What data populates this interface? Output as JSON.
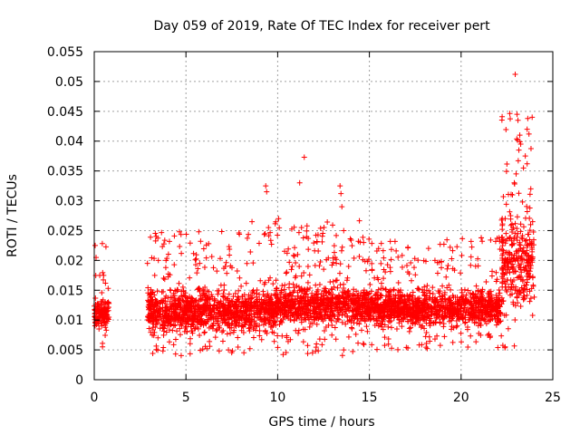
{
  "chart_data": {
    "type": "scatter",
    "title": "Day 059 of 2019, Rate Of TEC Index for receiver pert",
    "xlabel": "GPS time / hours",
    "ylabel": "ROTI / TECUs",
    "xlim": [
      0,
      25
    ],
    "ylim": [
      0,
      0.055
    ],
    "grid": true,
    "x_ticks": [
      0,
      5,
      10,
      15,
      20,
      25
    ],
    "x_tick_labels": [
      "0",
      "5",
      "10",
      "15",
      "20",
      "25"
    ],
    "y_ticks": [
      0,
      0.005,
      0.01,
      0.015,
      0.02,
      0.025,
      0.03,
      0.035,
      0.04,
      0.045,
      0.05,
      0.055
    ],
    "y_tick_labels": [
      "0",
      "0.005",
      "0.01",
      "0.015",
      "0.02",
      "0.025",
      "0.03",
      "0.035",
      "0.04",
      "0.045",
      "0.05",
      "0.055"
    ],
    "marker": "+",
    "color": "#ff0000",
    "series": [
      {
        "name": "ROTI",
        "segments": [
          {
            "x_range": [
              0.0,
              0.8
            ],
            "typical": [
              0.008,
              0.014
            ],
            "spread": [
              0.005,
              0.023
            ]
          },
          {
            "x_range": [
              2.9,
              9.8
            ],
            "typical": [
              0.007,
              0.016
            ],
            "spread": [
              0.004,
              0.025
            ]
          },
          {
            "x_range": [
              9.8,
              14.5
            ],
            "typical": [
              0.008,
              0.017
            ],
            "spread": [
              0.004,
              0.027
            ]
          },
          {
            "x_range": [
              14.5,
              22.2
            ],
            "typical": [
              0.008,
              0.016
            ],
            "spread": [
              0.005,
              0.024
            ]
          },
          {
            "x_range": [
              22.2,
              24.0
            ],
            "typical": [
              0.009,
              0.03
            ],
            "spread": [
              0.005,
              0.045
            ]
          }
        ],
        "points": [
          [
            0.05,
            0.0225
          ],
          [
            0.1,
            0.0205
          ],
          [
            0.3,
            0.0175
          ],
          [
            0.45,
            0.0055
          ],
          [
            2.9,
            0.0195
          ],
          [
            3.9,
            0.0188
          ],
          [
            5.7,
            0.0248
          ],
          [
            5.8,
            0.0232
          ],
          [
            5.75,
            0.0195
          ],
          [
            8.6,
            0.0265
          ],
          [
            9.35,
            0.0325
          ],
          [
            9.4,
            0.0315
          ],
          [
            9.5,
            0.0255
          ],
          [
            10.05,
            0.027
          ],
          [
            11.2,
            0.033
          ],
          [
            11.45,
            0.0373
          ],
          [
            11.3,
            0.0255
          ],
          [
            11.6,
            0.0258
          ],
          [
            11.9,
            0.0045
          ],
          [
            13.4,
            0.0325
          ],
          [
            13.45,
            0.0312
          ],
          [
            13.5,
            0.029
          ],
          [
            13.6,
            0.025
          ],
          [
            14.4,
            0.0232
          ],
          [
            17.1,
            0.0222
          ],
          [
            21.1,
            0.0238
          ],
          [
            21.15,
            0.0232
          ],
          [
            22.1,
            0.0232
          ],
          [
            22.4,
            0.0055
          ],
          [
            22.95,
            0.0512
          ],
          [
            23.05,
            0.0445
          ],
          [
            23.1,
            0.0435
          ],
          [
            23.2,
            0.041
          ],
          [
            23.25,
            0.0395
          ],
          [
            23.15,
            0.0385
          ],
          [
            23.6,
            0.042
          ],
          [
            23.7,
            0.0412
          ],
          [
            23.5,
            0.0375
          ],
          [
            23.6,
            0.0362
          ],
          [
            23.4,
            0.0355
          ],
          [
            23.0,
            0.0345
          ],
          [
            22.9,
            0.033
          ],
          [
            23.8,
            0.032
          ],
          [
            22.8,
            0.031
          ],
          [
            23.35,
            0.0298
          ],
          [
            23.75,
            0.0288
          ],
          [
            22.7,
            0.0275
          ],
          [
            23.9,
            0.0265
          ]
        ]
      }
    ]
  }
}
